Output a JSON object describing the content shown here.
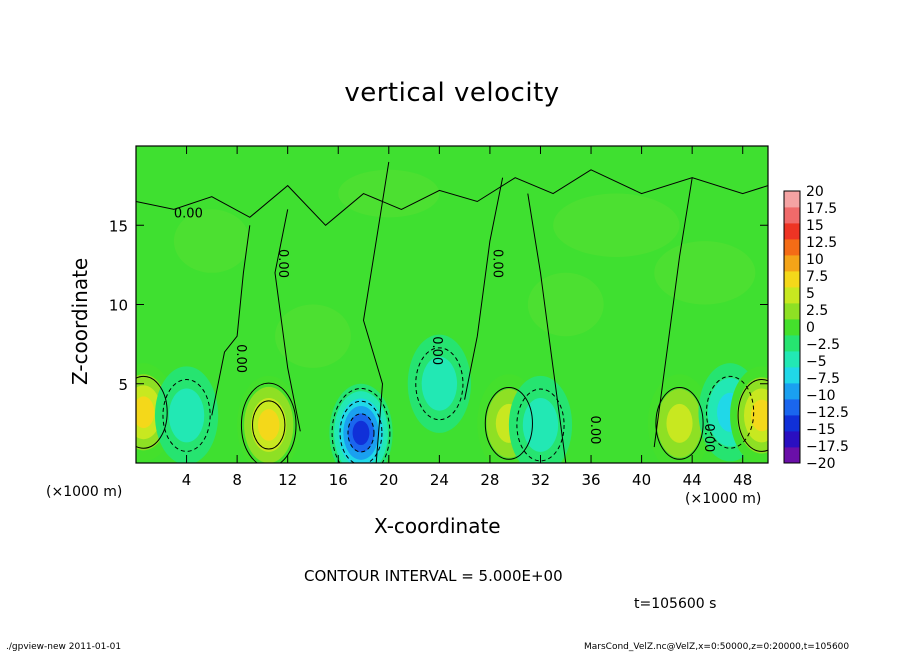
{
  "footer": {
    "left": "./gpview-new   2011-01-01",
    "right": "MarsCond_VelZ.nc@VelZ,x=0:50000,z=0:20000,t=105600"
  },
  "annotations": {
    "contour_interval": "CONTOUR INTERVAL = 5.000E+00",
    "time": "t=105600 s",
    "x_unit_left": "(×1000 m)",
    "x_unit_right": "(×1000 m)",
    "contour_label": "0.00"
  },
  "chart_data": {
    "type": "heatmap",
    "title": "vertical velocity",
    "xlabel": "X-coordinate",
    "ylabel": "Z-coordinate",
    "xlim": [
      0,
      50
    ],
    "ylim": [
      0,
      20
    ],
    "x_ticks": [
      4,
      8,
      12,
      16,
      20,
      24,
      28,
      32,
      36,
      40,
      44,
      48
    ],
    "y_ticks": [
      5,
      10,
      15
    ],
    "colorbar": {
      "levels": [
        -20,
        -17.5,
        -15,
        -12.5,
        -10,
        -7.5,
        -5,
        -2.5,
        0,
        2.5,
        5,
        7.5,
        10,
        12.5,
        15,
        17.5,
        20
      ],
      "labels": [
        "20",
        "17.5",
        "15",
        "12.5",
        "10",
        "7.5",
        "5",
        "2.5",
        "0",
        "−2.5",
        "−5",
        "−7.5",
        "−10",
        "−12.5",
        "−15",
        "−17.5",
        "−20"
      ],
      "colors": [
        "#6a0fa8",
        "#2a0fc0",
        "#1030d8",
        "#1a66ee",
        "#1aa0f0",
        "#20d8e8",
        "#22e8b4",
        "#26e470",
        "#44e02c",
        "#8ee024",
        "#c8e820",
        "#f4d81a",
        "#f4a418",
        "#f46c16",
        "#ee3424",
        "#f06a6a",
        "#f5a3a3"
      ]
    },
    "features": [
      {
        "kind": "updraft",
        "x": 0.6,
        "z": 3.2,
        "peak": 9
      },
      {
        "kind": "downdraft",
        "x": 4.0,
        "z": 3.0,
        "peak": -6
      },
      {
        "kind": "updraft",
        "x": 10.5,
        "z": 2.4,
        "peak": 11
      },
      {
        "kind": "downdraft",
        "x": 17.8,
        "z": 1.9,
        "peak": -16
      },
      {
        "kind": "downdraft",
        "x": 24.0,
        "z": 5.0,
        "peak": -6
      },
      {
        "kind": "updraft",
        "x": 29.5,
        "z": 2.5,
        "peak": 7
      },
      {
        "kind": "downdraft",
        "x": 32.0,
        "z": 2.4,
        "peak": -6
      },
      {
        "kind": "updraft",
        "x": 43.0,
        "z": 2.5,
        "peak": 8
      },
      {
        "kind": "downdraft",
        "x": 47.0,
        "z": 3.2,
        "peak": -7
      },
      {
        "kind": "updraft",
        "x": 49.5,
        "z": 3.0,
        "peak": 9
      }
    ]
  }
}
